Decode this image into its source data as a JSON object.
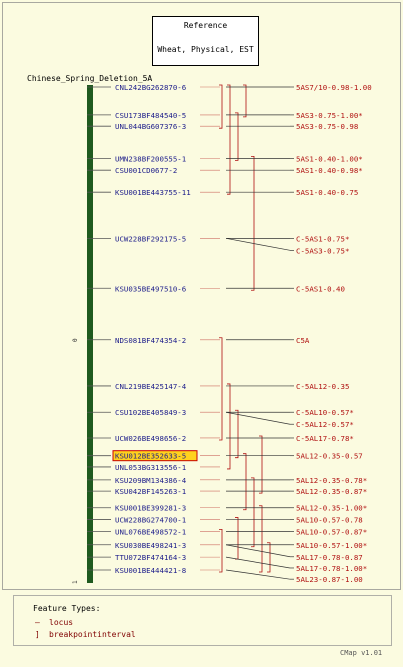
{
  "reference": {
    "title": "Reference",
    "subtitle": "Wheat, Physical, EST"
  },
  "map_title": "Chinese_Spring_Deletion_5A",
  "axis_ticks": [
    "0",
    "1"
  ],
  "loci": [
    {
      "name": "CNL242BG262870-6",
      "pos": 0.0,
      "highlighted": false
    },
    {
      "name": "CSU173BF484540-5",
      "pos": 0.052,
      "highlighted": false
    },
    {
      "name": "UNL044BG607376-3",
      "pos": 0.073,
      "highlighted": false
    },
    {
      "name": "UMN238BF200555-1",
      "pos": 0.133,
      "highlighted": false
    },
    {
      "name": "CSU001CD0677-2",
      "pos": 0.155,
      "highlighted": false
    },
    {
      "name": "KSU001BE443755-11",
      "pos": 0.196,
      "highlighted": false
    },
    {
      "name": "UCW228BF292175-5",
      "pos": 0.282,
      "highlighted": false
    },
    {
      "name": "KSU035BE497510-6",
      "pos": 0.375,
      "highlighted": false
    },
    {
      "name": "NDS081BF474354-2",
      "pos": 0.471,
      "highlighted": false
    },
    {
      "name": "CNL219BE425147-4",
      "pos": 0.557,
      "highlighted": false
    },
    {
      "name": "CSU102BE405849-3",
      "pos": 0.606,
      "highlighted": false
    },
    {
      "name": "UCW026BE498656-2",
      "pos": 0.654,
      "highlighted": false
    },
    {
      "name": "KSU012BE352633-5",
      "pos": 0.687,
      "highlighted": true
    },
    {
      "name": "UNL053BG313556-1",
      "pos": 0.708,
      "highlighted": false
    },
    {
      "name": "KSU209BM134386-4",
      "pos": 0.732,
      "highlighted": false
    },
    {
      "name": "KSU042BF145263-1",
      "pos": 0.753,
      "highlighted": false
    },
    {
      "name": "KSU001BE399281-3",
      "pos": 0.784,
      "highlighted": false
    },
    {
      "name": "UCW228BG274700-1",
      "pos": 0.806,
      "highlighted": false
    },
    {
      "name": "UNL076BE498572-1",
      "pos": 0.828,
      "highlighted": false
    },
    {
      "name": "KSU030BE498241-3",
      "pos": 0.853,
      "highlighted": false
    },
    {
      "name": "TTU072BF474164-3",
      "pos": 0.876,
      "highlighted": false
    },
    {
      "name": "KSU001BE444421-8",
      "pos": 0.9,
      "highlighted": false
    }
  ],
  "breakpoint_intervals": [
    {
      "label": "5AS7/10-0.98-1.00",
      "locus": 0
    },
    {
      "label": "5AS3-0.75-1.00*",
      "locus": 1
    },
    {
      "label": "5AS3-0.75-0.98",
      "locus": 2
    },
    {
      "label": "5AS1-0.40-1.00*",
      "locus": 3
    },
    {
      "label": "5AS1-0.40-0.98*",
      "locus": 4
    },
    {
      "label": "5AS1-0.40-0.75",
      "locus": 5
    },
    {
      "label": "C-5AS1-0.75*",
      "locus": 6
    },
    {
      "label": "C-5AS3-0.75*",
      "locus": 6
    },
    {
      "label": "C-5AS1-0.40",
      "locus": 7
    },
    {
      "label": "C5A",
      "locus": 8
    },
    {
      "label": "C-5AL12-0.35",
      "locus": 9
    },
    {
      "label": "C-5AL10-0.57*",
      "locus": 10
    },
    {
      "label": "C-5AL12-0.57*",
      "locus": 10
    },
    {
      "label": "C-5AL17-0.78*",
      "locus": 11
    },
    {
      "label": "5AL12-0.35-0.57",
      "locus": 12
    },
    {
      "label": "5AL12-0.35-0.78*",
      "locus": 14
    },
    {
      "label": "5AL12-0.35-0.87*",
      "locus": 15
    },
    {
      "label": "5AL12-0.35-1.00*",
      "locus": 16
    },
    {
      "label": "5AL10-0.57-0.78",
      "locus": 17
    },
    {
      "label": "5AL10-0.57-0.87*",
      "locus": 18
    },
    {
      "label": "5AL10-0.57-1.00*",
      "locus": 19
    },
    {
      "label": "5AL17-0.78-0.87",
      "locus": 19
    },
    {
      "label": "5AL17-0.78-1.00*",
      "locus": 20
    },
    {
      "label": "5AL23-0.87-1.00",
      "locus": 21
    }
  ],
  "legend": {
    "title": "Feature Types:",
    "items": [
      {
        "label": "locus",
        "symbol": "—"
      },
      {
        "label": "breakpointinterval",
        "symbol": "]"
      }
    ]
  },
  "version": "CMap v1.01",
  "colors": {
    "background": "#fbfbe0",
    "map_bar": "#1f5a1f",
    "locus_text": "#1c1c8a",
    "interval": "#b01010",
    "highlight_fill": "#ffd21e",
    "highlight_border": "#c80000"
  }
}
